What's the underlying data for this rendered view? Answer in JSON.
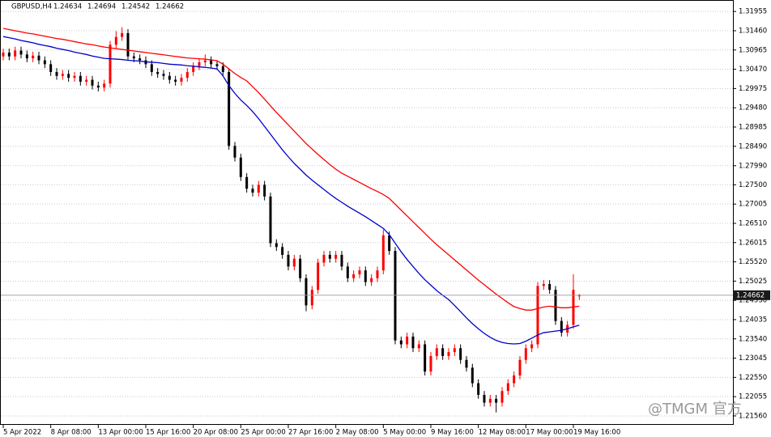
{
  "chart_data": {
    "type": "candlestick",
    "title": "GBPUSD,H4",
    "watermark": "@TMGM 官方",
    "categories": [
      "5 Apr 2022",
      null,
      null,
      null,
      null,
      null,
      null,
      null,
      "8 Apr 08:00",
      null,
      null,
      null,
      null,
      null,
      null,
      null,
      "13 Apr 00:00",
      null,
      null,
      null,
      null,
      null,
      null,
      null,
      "15 Apr 16:00",
      null,
      null,
      null,
      null,
      null,
      null,
      null,
      "20 Apr 08:00",
      null,
      null,
      null,
      null,
      null,
      null,
      null,
      "25 Apr 00:00",
      null,
      null,
      null,
      null,
      null,
      null,
      null,
      "27 Apr 16:00",
      null,
      null,
      null,
      null,
      null,
      null,
      null,
      "2 May 08:00",
      null,
      null,
      null,
      null,
      null,
      null,
      null,
      "5 May 00:00",
      null,
      null,
      null,
      null,
      null,
      null,
      null,
      "9 May 16:00",
      null,
      null,
      null,
      null,
      null,
      null,
      null,
      "12 May 08:00",
      null,
      null,
      null,
      null,
      null,
      null,
      null,
      "17 May 00:00",
      null,
      null,
      null,
      null,
      null,
      null,
      null,
      "19 May 16:00",
      null
    ],
    "open": [
      1.308,
      1.309,
      1.308,
      1.3095,
      1.3085,
      1.3075,
      1.3082,
      1.307,
      1.306,
      1.304,
      1.303,
      1.3035,
      1.3025,
      1.303,
      1.3015,
      1.302,
      1.3005,
      1.3,
      1.301,
      1.311,
      1.313,
      1.314,
      1.308,
      1.3075,
      1.307,
      1.306,
      1.304,
      1.3035,
      1.303,
      1.302,
      1.3015,
      1.3025,
      1.304,
      1.3055,
      1.3065,
      1.307,
      1.306,
      1.3055,
      1.304,
      1.285,
      1.282,
      1.277,
      1.274,
      1.273,
      1.275,
      1.272,
      1.26,
      1.259,
      1.257,
      1.254,
      1.256,
      1.251,
      1.244,
      1.248,
      1.255,
      1.257,
      1.256,
      1.257,
      1.254,
      1.251,
      1.252,
      1.253,
      1.25,
      1.251,
      1.253,
      1.262,
      1.258,
      1.235,
      1.234,
      1.236,
      1.233,
      1.234,
      1.227,
      1.231,
      1.233,
      1.231,
      1.232,
      1.233,
      1.23,
      1.228,
      1.224,
      1.221,
      1.219,
      1.22,
      1.219,
      1.222,
      1.224,
      1.226,
      1.23,
      1.233,
      1.234,
      1.249,
      1.2495,
      1.248,
      1.24,
      1.237,
      1.239,
      1.24634
    ],
    "high": [
      1.31,
      1.31,
      1.3105,
      1.3105,
      1.3095,
      1.3092,
      1.3092,
      1.308,
      1.307,
      1.305,
      1.3045,
      1.3045,
      1.304,
      1.304,
      1.303,
      1.303,
      1.3015,
      1.302,
      1.312,
      1.3145,
      1.3155,
      1.315,
      1.309,
      1.3085,
      1.308,
      1.307,
      1.305,
      1.3045,
      1.304,
      1.303,
      1.3035,
      1.305,
      1.3065,
      1.3075,
      1.3085,
      1.308,
      1.307,
      1.3065,
      1.305,
      1.286,
      1.283,
      1.278,
      1.275,
      1.276,
      1.276,
      1.273,
      1.261,
      1.26,
      1.258,
      1.257,
      1.257,
      1.252,
      1.249,
      1.256,
      1.258,
      1.258,
      1.258,
      1.258,
      1.255,
      1.253,
      1.254,
      1.254,
      1.252,
      1.254,
      1.2635,
      1.263,
      1.259,
      1.236,
      1.237,
      1.237,
      1.235,
      1.235,
      1.232,
      1.234,
      1.234,
      1.233,
      1.234,
      1.234,
      1.231,
      1.229,
      1.225,
      1.222,
      1.221,
      1.221,
      1.223,
      1.225,
      1.227,
      1.231,
      1.234,
      1.235,
      1.25,
      1.2505,
      1.2505,
      1.249,
      1.241,
      1.24,
      1.252,
      1.24694
    ],
    "low": [
      1.307,
      1.307,
      1.307,
      1.3075,
      1.3065,
      1.3065,
      1.306,
      1.305,
      1.303,
      1.302,
      1.302,
      1.3015,
      1.3015,
      1.3005,
      1.3005,
      1.2995,
      1.299,
      1.299,
      1.3,
      1.31,
      1.312,
      1.307,
      1.3065,
      1.306,
      1.305,
      1.303,
      1.3025,
      1.302,
      1.301,
      1.3005,
      1.3005,
      1.3015,
      1.303,
      1.3045,
      1.3055,
      1.305,
      1.3045,
      1.303,
      1.284,
      1.281,
      1.276,
      1.273,
      1.272,
      1.272,
      1.271,
      1.259,
      1.258,
      1.256,
      1.253,
      1.253,
      1.25,
      1.2425,
      1.243,
      1.247,
      1.254,
      1.255,
      1.255,
      1.253,
      1.25,
      1.25,
      1.251,
      1.249,
      1.249,
      1.25,
      1.252,
      1.257,
      1.234,
      1.233,
      1.233,
      1.232,
      1.232,
      1.226,
      1.226,
      1.23,
      1.23,
      1.23,
      1.231,
      1.229,
      1.227,
      1.223,
      1.22,
      1.218,
      1.218,
      1.2165,
      1.218,
      1.221,
      1.223,
      1.225,
      1.229,
      1.232,
      1.233,
      1.248,
      1.247,
      1.239,
      1.236,
      1.236,
      1.238,
      1.24542
    ],
    "close": [
      1.309,
      1.308,
      1.3095,
      1.3085,
      1.3075,
      1.3082,
      1.307,
      1.306,
      1.304,
      1.303,
      1.3035,
      1.3025,
      1.303,
      1.3015,
      1.302,
      1.3005,
      1.3,
      1.301,
      1.311,
      1.313,
      1.314,
      1.308,
      1.3075,
      1.307,
      1.306,
      1.304,
      1.3035,
      1.303,
      1.302,
      1.3015,
      1.3025,
      1.304,
      1.3055,
      1.3065,
      1.307,
      1.306,
      1.3055,
      1.304,
      1.285,
      1.282,
      1.277,
      1.274,
      1.273,
      1.275,
      1.272,
      1.26,
      1.259,
      1.257,
      1.254,
      1.256,
      1.251,
      1.244,
      1.248,
      1.255,
      1.257,
      1.256,
      1.257,
      1.254,
      1.251,
      1.252,
      1.253,
      1.25,
      1.251,
      1.253,
      1.262,
      1.258,
      1.235,
      1.234,
      1.236,
      1.233,
      1.234,
      1.227,
      1.231,
      1.233,
      1.231,
      1.232,
      1.233,
      1.23,
      1.228,
      1.224,
      1.221,
      1.219,
      1.22,
      1.219,
      1.222,
      1.224,
      1.226,
      1.23,
      1.233,
      1.234,
      1.249,
      1.2495,
      1.248,
      1.24,
      1.237,
      1.239,
      1.248,
      1.24662
    ],
    "up_color": "#ff0000",
    "down_color": "#000000",
    "series": [
      {
        "color": "#ff0000",
        "values": [
          1.3152,
          1.3149,
          1.3146,
          1.3143,
          1.314,
          1.3138,
          1.3135,
          1.3132,
          1.3129,
          1.3126,
          1.3124,
          1.3121,
          1.3118,
          1.3115,
          1.3112,
          1.311,
          1.3107,
          1.3104,
          1.3102,
          1.31,
          1.3098,
          1.3096,
          1.3094,
          1.3092,
          1.309,
          1.3088,
          1.3086,
          1.3084,
          1.3082,
          1.308,
          1.3078,
          1.3076,
          1.3075,
          1.3074,
          1.3073,
          1.3071,
          1.3069,
          1.306,
          1.3048,
          1.3036,
          1.3026,
          1.3017,
          1.3002,
          1.2987,
          1.297,
          1.2953,
          1.2936,
          1.292,
          1.2904,
          1.2888,
          1.2872,
          1.2856,
          1.2842,
          1.2828,
          1.2815,
          1.2802,
          1.279,
          1.278,
          1.2772,
          1.2764,
          1.2756,
          1.2748,
          1.274,
          1.2733,
          1.2725,
          1.2715,
          1.27,
          1.2685,
          1.267,
          1.2655,
          1.264,
          1.2625,
          1.261,
          1.2596,
          1.2583,
          1.257,
          1.2557,
          1.2544,
          1.2531,
          1.2518,
          1.2505,
          1.2493,
          1.2481,
          1.2469,
          1.2458,
          1.2447,
          1.2437,
          1.2432,
          1.2428,
          1.2428,
          1.2432,
          1.2436,
          1.2438,
          1.2436,
          1.2434,
          1.2434,
          1.2436,
          1.2438
        ]
      },
      {
        "color": "#0000cc",
        "values": [
          1.3131,
          1.3128,
          1.3125,
          1.3121,
          1.3118,
          1.3115,
          1.3111,
          1.3108,
          1.3105,
          1.3101,
          1.3098,
          1.3095,
          1.3091,
          1.3088,
          1.3085,
          1.3081,
          1.3078,
          1.3075,
          1.3074,
          1.3073,
          1.3072,
          1.307,
          1.3069,
          1.3068,
          1.3066,
          1.3065,
          1.3064,
          1.3062,
          1.306,
          1.3059,
          1.3058,
          1.3056,
          1.3055,
          1.3053,
          1.3052,
          1.305,
          1.3048,
          1.303,
          1.3005,
          1.2985,
          1.2968,
          1.2954,
          1.2938,
          1.292,
          1.29,
          1.288,
          1.286,
          1.284,
          1.2822,
          1.2805,
          1.279,
          1.2775,
          1.2762,
          1.275,
          1.2738,
          1.2726,
          1.2715,
          1.2705,
          1.2695,
          1.2686,
          1.2677,
          1.2668,
          1.2658,
          1.2648,
          1.2638,
          1.2622,
          1.26,
          1.2578,
          1.2558,
          1.254,
          1.2522,
          1.2506,
          1.2492,
          1.2478,
          1.2466,
          1.2455,
          1.244,
          1.2424,
          1.2408,
          1.2393,
          1.238,
          1.2368,
          1.2358,
          1.235,
          1.2345,
          1.2342,
          1.2341,
          1.2342,
          1.2348,
          1.2356,
          1.2364,
          1.237,
          1.2372,
          1.2374,
          1.2376,
          1.238,
          1.2385,
          1.2389
        ]
      }
    ],
    "ylim": [
      1.2133,
      1.3225
    ],
    "yticks": [
      {
        "value": 1.31955,
        "label": "1.31955"
      },
      {
        "value": 1.3146,
        "label": "1.31460"
      },
      {
        "value": 1.30965,
        "label": "1.30965"
      },
      {
        "value": 1.3047,
        "label": "1.30470"
      },
      {
        "value": 1.29975,
        "label": "1.29975"
      },
      {
        "value": 1.2948,
        "label": "1.29480"
      },
      {
        "value": 1.28985,
        "label": "1.28985"
      },
      {
        "value": 1.2849,
        "label": "1.28490"
      },
      {
        "value": 1.2799,
        "label": "1.27990"
      },
      {
        "value": 1.275,
        "label": "1.27500"
      },
      {
        "value": 1.27005,
        "label": "1.27005"
      },
      {
        "value": 1.2651,
        "label": "1.26510"
      },
      {
        "value": 1.26015,
        "label": "1.26015"
      },
      {
        "value": 1.2552,
        "label": "1.25520"
      },
      {
        "value": 1.25025,
        "label": "1.25025"
      },
      {
        "value": 1.2453,
        "label": "1.24530"
      },
      {
        "value": 1.24035,
        "label": "1.24035"
      },
      {
        "value": 1.2354,
        "label": "1.23540"
      },
      {
        "value": 1.23045,
        "label": "1.23045"
      },
      {
        "value": 1.2255,
        "label": "1.22550"
      },
      {
        "value": 1.22055,
        "label": "1.22055"
      },
      {
        "value": 1.2156,
        "label": "1.21560"
      }
    ],
    "grid": true
  }
}
